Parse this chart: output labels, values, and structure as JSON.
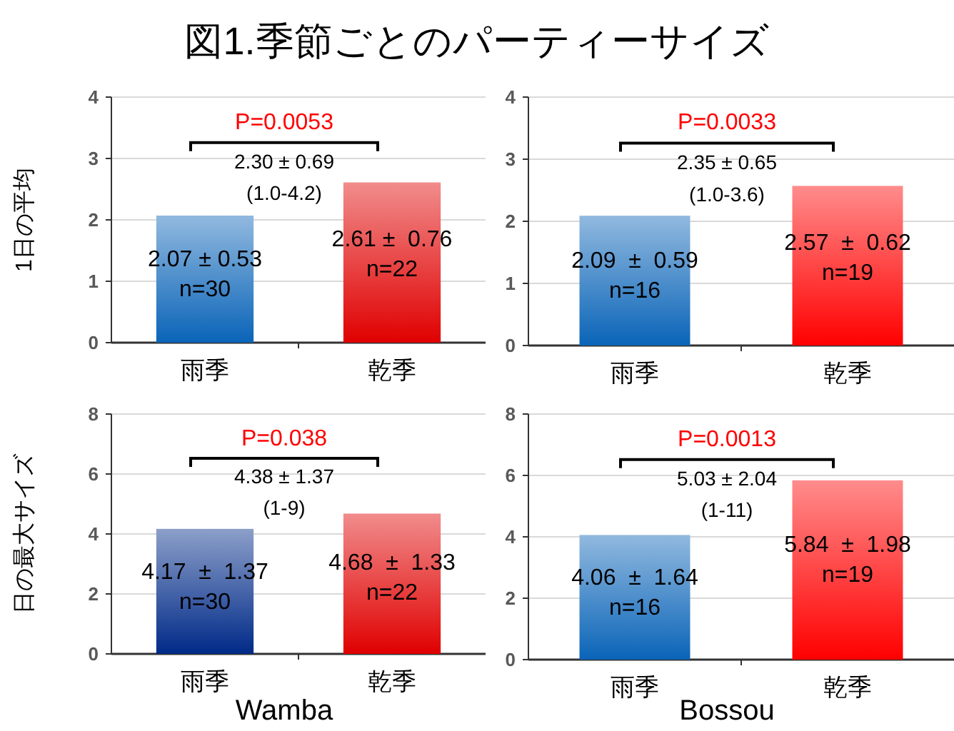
{
  "chart_data": [
    {
      "type": "bar",
      "title": "図1.季節ごとのパーティーサイズ",
      "ylabel": "1日の平均",
      "categories": [
        "雨季",
        "乾季"
      ],
      "values": [
        2.07,
        2.61
      ],
      "colors": [
        "#0a64b8",
        "#e00000"
      ],
      "ylim": [
        0,
        4
      ],
      "yticks": [
        0,
        1,
        2,
        3,
        4
      ],
      "grid": "y",
      "value_labels": [
        "2.07 ± 0.53\nn=30",
        "2.61 ±  0.76\nn=22"
      ],
      "annotations": [
        "P=0.0053",
        "2.30 ± 0.69",
        "(1.0-4.2)"
      ]
    },
    {
      "type": "bar",
      "categories": [
        "雨季",
        "乾季"
      ],
      "values": [
        2.09,
        2.57
      ],
      "colors": [
        "#0a64b8",
        "#ff0000"
      ],
      "ylim": [
        0,
        4
      ],
      "yticks": [
        0,
        1,
        2,
        3,
        4
      ],
      "grid": "y",
      "value_labels": [
        "2.09  ±  0.59\nn=16",
        "2.57  ±  0.62\nn=19"
      ],
      "annotations": [
        "P=0.0033",
        "2.35 ± 0.65",
        "(1.0-3.6)"
      ]
    },
    {
      "type": "bar",
      "ylabel": "日の最大サイズ",
      "xlabel": "Wamba",
      "categories": [
        "雨季",
        "乾季"
      ],
      "values": [
        4.17,
        4.68
      ],
      "colors": [
        "#002a88",
        "#e00000"
      ],
      "ylim": [
        0,
        8
      ],
      "yticks": [
        0,
        2,
        4,
        6,
        8
      ],
      "grid": "y",
      "value_labels": [
        "4.17  ±  1.37\nn=30",
        "4.68  ±  1.33\nn=22"
      ],
      "annotations": [
        "P=0.038",
        "4.38 ± 1.37",
        "(1-9)"
      ]
    },
    {
      "type": "bar",
      "xlabel": "Bossou",
      "categories": [
        "雨季",
        "乾季"
      ],
      "values": [
        4.06,
        5.84
      ],
      "colors": [
        "#0a64b8",
        "#ff0000"
      ],
      "ylim": [
        0,
        8
      ],
      "yticks": [
        0,
        2,
        4,
        6,
        8
      ],
      "grid": "y",
      "value_labels": [
        "4.06  ±  1.64\nn=16",
        "5.84  ±  1.98\nn=19"
      ],
      "annotations": [
        "P=0.0013",
        "5.03 ± 2.04",
        "(1-11)"
      ]
    }
  ]
}
